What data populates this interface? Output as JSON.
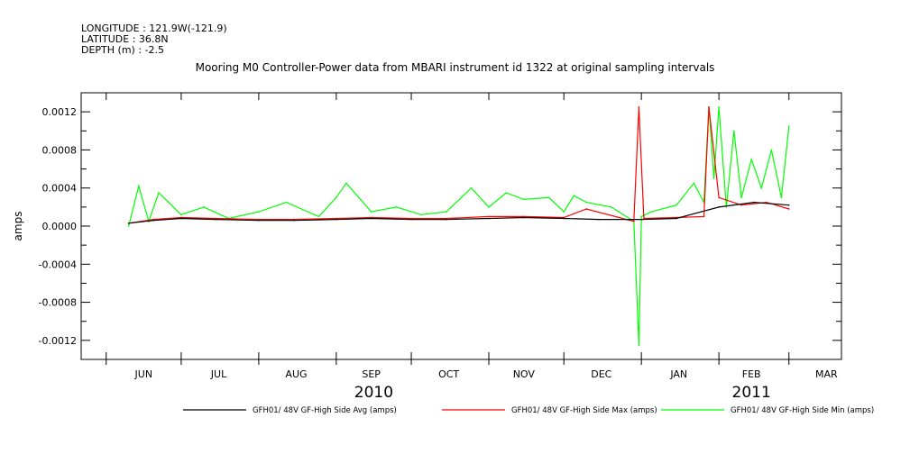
{
  "header": {
    "longitude": "LONGITUDE : 121.9W(-121.9)",
    "latitude": "LATITUDE : 36.8N",
    "depth": "DEPTH (m) : -2.5"
  },
  "chart_data": {
    "type": "line",
    "title": "Mooring M0 Controller-Power data from MBARI instrument id 1322 at original sampling intervals",
    "ylabel": "amps",
    "xlabel": "",
    "ylim": [
      -0.0014,
      0.0014
    ],
    "yticks": [
      0.0012,
      0.0008,
      0.0004,
      0.0,
      -0.0004,
      -0.0008,
      -0.0012
    ],
    "ytick_labels": [
      "0.0012",
      "0.0008",
      "0.0004",
      "0.0000",
      "-0.0004",
      "-0.0008",
      "-0.0012"
    ],
    "x_range": [
      "2010-05-22",
      "2011-03-22"
    ],
    "month_boundaries": [
      "2010-06-01",
      "2010-07-01",
      "2010-08-01",
      "2010-09-01",
      "2010-10-01",
      "2010-11-01",
      "2010-12-01",
      "2011-01-01",
      "2011-02-01",
      "2011-03-01"
    ],
    "month_labels": [
      "JUN",
      "JUL",
      "AUG",
      "SEP",
      "OCT",
      "NOV",
      "DEC",
      "JAN",
      "FEB",
      "MAR"
    ],
    "month_label_dates": [
      "2010-06-16",
      "2010-07-16",
      "2010-08-16",
      "2010-09-15",
      "2010-10-16",
      "2010-11-15",
      "2010-12-16",
      "2011-01-16",
      "2011-02-14",
      "2011-03-16"
    ],
    "year_labels": [
      {
        "text": "2010",
        "date": "2010-09-16"
      },
      {
        "text": "2011",
        "date": "2011-02-14"
      }
    ],
    "grid": false,
    "legend_position": "bottom",
    "series": [
      {
        "name": "GFH01/ 48V GF-High Side Avg (amps)",
        "color": "#000000",
        "x": [
          "2010-06-10",
          "2010-06-20",
          "2010-07-01",
          "2010-07-15",
          "2010-08-01",
          "2010-08-15",
          "2010-09-01",
          "2010-09-15",
          "2010-10-01",
          "2010-10-15",
          "2010-11-01",
          "2010-11-15",
          "2010-12-01",
          "2010-12-15",
          "2011-01-01",
          "2011-01-15",
          "2011-02-01",
          "2011-02-15",
          "2011-03-01"
        ],
        "y": [
          3e-05,
          6e-05,
          8e-05,
          7e-05,
          6e-05,
          6e-05,
          7e-05,
          8e-05,
          7e-05,
          7e-05,
          8e-05,
          9e-05,
          8e-05,
          7e-05,
          7e-05,
          8e-05,
          0.0002,
          0.00025,
          0.00022
        ]
      },
      {
        "name": "GFH01/ 48V GF-High Side Max (amps)",
        "color": "#ff0000",
        "x": [
          "2010-06-10",
          "2010-06-20",
          "2010-07-01",
          "2010-07-15",
          "2010-08-01",
          "2010-08-15",
          "2010-09-01",
          "2010-09-15",
          "2010-10-01",
          "2010-10-15",
          "2010-11-01",
          "2010-11-15",
          "2010-12-01",
          "2010-12-10",
          "2010-12-29",
          "2010-12-31",
          "2011-01-02",
          "2011-01-15",
          "2011-01-26",
          "2011-01-28",
          "2011-02-01",
          "2011-02-10",
          "2011-02-20",
          "2011-03-01"
        ],
        "y": [
          3e-05,
          7e-05,
          9e-05,
          8e-05,
          7e-05,
          7e-05,
          8e-05,
          9e-05,
          8e-05,
          8e-05,
          0.0001,
          0.0001,
          9e-05,
          0.00018,
          5e-05,
          0.00125,
          8e-05,
          9e-05,
          0.0001,
          0.00125,
          0.0003,
          0.00022,
          0.00025,
          0.00018
        ]
      },
      {
        "name": "GFH01/ 48V GF-High Side Min (amps)",
        "color": "#00ff00",
        "x": [
          "2010-06-10",
          "2010-06-14",
          "2010-06-18",
          "2010-06-22",
          "2010-07-01",
          "2010-07-10",
          "2010-07-20",
          "2010-08-01",
          "2010-08-12",
          "2010-08-25",
          "2010-09-01",
          "2010-09-05",
          "2010-09-15",
          "2010-09-25",
          "2010-10-05",
          "2010-10-15",
          "2010-10-25",
          "2010-11-01",
          "2010-11-08",
          "2010-11-15",
          "2010-11-25",
          "2010-12-01",
          "2010-12-05",
          "2010-12-10",
          "2010-12-20",
          "2010-12-29",
          "2010-12-31",
          "2011-01-01",
          "2011-01-05",
          "2011-01-15",
          "2011-01-22",
          "2011-01-26",
          "2011-01-28",
          "2011-01-30",
          "2011-02-01",
          "2011-02-04",
          "2011-02-07",
          "2011-02-10",
          "2011-02-14",
          "2011-02-18",
          "2011-02-22",
          "2011-02-26",
          "2011-03-01"
        ],
        "y": [
          0.0,
          0.00042,
          5e-05,
          0.00035,
          0.00012,
          0.0002,
          8e-05,
          0.00015,
          0.00025,
          0.0001,
          0.0003,
          0.00045,
          0.00015,
          0.0002,
          0.00012,
          0.00015,
          0.0004,
          0.0002,
          0.00035,
          0.00028,
          0.0003,
          0.00015,
          0.00032,
          0.00025,
          0.0002,
          5e-05,
          -0.00125,
          0.0001,
          0.00015,
          0.00022,
          0.00045,
          0.00025,
          0.00125,
          0.0005,
          0.00125,
          0.0002,
          0.001,
          0.0003,
          0.0007,
          0.0004,
          0.0008,
          0.0003,
          0.00105
        ]
      }
    ]
  }
}
